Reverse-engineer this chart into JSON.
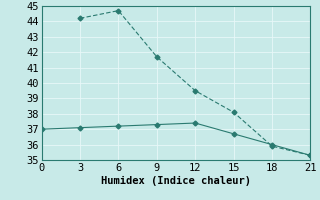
{
  "line1_x": [
    3,
    6,
    9,
    12,
    15,
    18,
    21
  ],
  "line1_y": [
    44.2,
    44.7,
    41.7,
    39.5,
    38.1,
    35.9,
    35.3
  ],
  "line2_x": [
    0,
    3,
    6,
    9,
    12,
    15,
    18,
    21
  ],
  "line2_y": [
    37.0,
    37.1,
    37.2,
    37.3,
    37.4,
    36.7,
    36.0,
    35.3
  ],
  "line_color": "#2a7a70",
  "bg_color": "#c8eae8",
  "grid_color": "#e8f8f8",
  "xlabel": "Humidex (Indice chaleur)",
  "xlim": [
    0,
    21
  ],
  "ylim": [
    35,
    45
  ],
  "xticks": [
    0,
    3,
    6,
    9,
    12,
    15,
    18,
    21
  ],
  "yticks": [
    35,
    36,
    37,
    38,
    39,
    40,
    41,
    42,
    43,
    44,
    45
  ],
  "xlabel_fontsize": 7.5,
  "tick_fontsize": 7.5
}
